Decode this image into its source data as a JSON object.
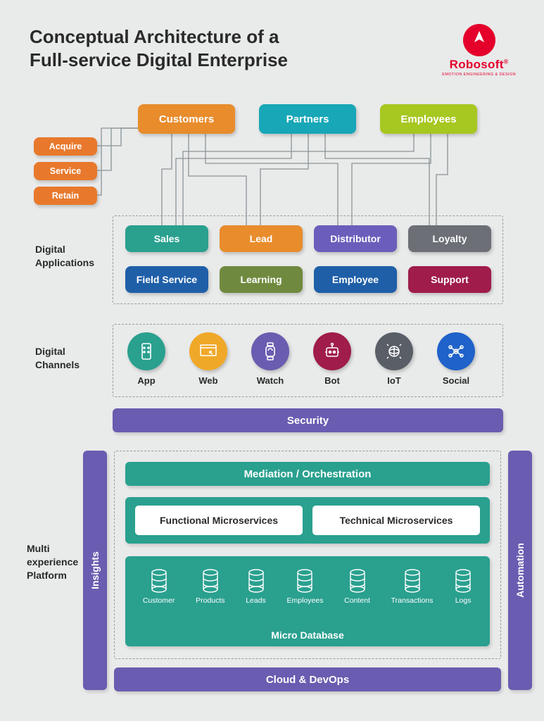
{
  "title_l1": "Conceptual Architecture of a",
  "title_l2": "Full-service Digital Enterprise",
  "logo": {
    "name": "Robosoft",
    "tagline": "EMOTION ENGINEERING & DESIGN",
    "reg": "®"
  },
  "colors": {
    "orange": "#e88c2c",
    "teal": "#17a7b7",
    "lime": "#a7c721",
    "orange2": "#e8792c",
    "green": "#2aa08f",
    "olive": "#6f8a3e",
    "purple": "#6b5dbb",
    "gray": "#6c6f76",
    "blue": "#1f5fa8",
    "maroon": "#9f1c4b",
    "secPurple": "#6a5cb0",
    "chApp": "#2aa08f",
    "chWeb": "#f0a828",
    "chWatch": "#6a5cb0",
    "chBot": "#9f1c4b",
    "chIoT": "#5a5e66",
    "chSocial": "#1f62c9",
    "wire": "#8a9598"
  },
  "top": {
    "customers": "Customers",
    "partners": "Partners",
    "employees": "Employees"
  },
  "left": {
    "acquire": "Acquire",
    "service": "Service",
    "retain": "Retain"
  },
  "sections": {
    "apps": "Digital\nApplications",
    "channels": "Digital\nChannels",
    "platform": "Multi\nexperience\nPlatform"
  },
  "apps": {
    "sales": "Sales",
    "lead": "Lead",
    "distributor": "Distributor",
    "loyalty": "Loyalty",
    "field": "Field Service",
    "learning": "Learning",
    "employee": "Employee",
    "support": "Support"
  },
  "channels": {
    "app": "App",
    "web": "Web",
    "watch": "Watch",
    "bot": "Bot",
    "iot": "IoT",
    "social": "Social"
  },
  "bars": {
    "security": "Security",
    "mediation": "Mediation / Orchestration",
    "cloud": "Cloud & DevOps"
  },
  "ms": {
    "func": "Functional  Microservices",
    "tech": "Technical Microservices"
  },
  "db": {
    "title": "Micro Database",
    "items": [
      "Customer",
      "Products",
      "Leads",
      "Employees",
      "Content",
      "Transactions",
      "Logs"
    ]
  },
  "side": {
    "insights": "Insights",
    "automation": "Automation"
  }
}
